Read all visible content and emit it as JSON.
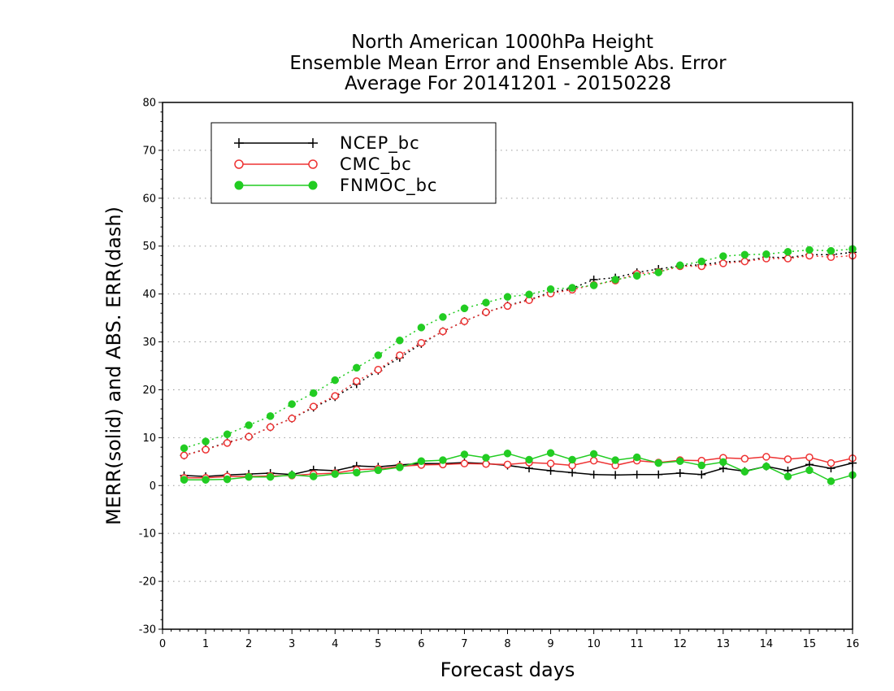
{
  "chart_data": {
    "type": "line",
    "title_lines": [
      "North American 1000hPa Height",
      "Ensemble Mean Error and Ensemble Abs. Error",
      "Average For 20141201 - 20150228"
    ],
    "xlabel": "Forecast days",
    "ylabel": "MERR(solid) and ABS. ERR(dash)",
    "xlim": [
      0,
      16
    ],
    "ylim": [
      -30,
      80
    ],
    "xticks": [
      "0",
      "1",
      "2",
      "3",
      "4",
      "5",
      "6",
      "7",
      "8",
      "9",
      "10",
      "11",
      "12",
      "13",
      "14",
      "15",
      "16"
    ],
    "yticks": [
      "-30",
      "-20",
      "-10",
      "0",
      "10",
      "20",
      "30",
      "40",
      "50",
      "60",
      "70",
      "80"
    ],
    "grid": "dotted horizontal",
    "legend_position": "top-left",
    "x": [
      0.5,
      1,
      1.5,
      2,
      2.5,
      3,
      3.5,
      4,
      4.5,
      5,
      5.5,
      6,
      6.5,
      7,
      7.5,
      8,
      8.5,
      9,
      9.5,
      10,
      10.5,
      11,
      11.5,
      12,
      12.5,
      13,
      13.5,
      14,
      14.5,
      15,
      15.5,
      16
    ],
    "series": [
      {
        "name": "NCEP_bc",
        "color": "#000000",
        "marker": "plus",
        "merr": [
          2.1,
          1.9,
          2.2,
          2.4,
          2.6,
          2.3,
          3.3,
          3.1,
          4.1,
          3.9,
          4.3,
          4.6,
          4.6,
          4.8,
          4.6,
          4.2,
          3.6,
          3.1,
          2.7,
          2.3,
          2.2,
          2.3,
          2.3,
          2.6,
          2.3,
          3.6,
          3.0,
          4.0,
          3.1,
          4.4,
          3.6,
          4.7
        ],
        "abs_err": [
          6.3,
          7.6,
          9.0,
          10.2,
          12.2,
          14.0,
          16.3,
          18.5,
          21.2,
          24.0,
          26.7,
          29.6,
          32.2,
          34.3,
          36.2,
          37.6,
          38.8,
          40.3,
          41.2,
          43.0,
          43.4,
          44.5,
          45.2,
          45.9,
          46.1,
          46.7,
          46.9,
          47.7,
          47.6,
          48.2,
          48.2,
          48.7
        ]
      },
      {
        "name": "CMC_bc",
        "color": "#ee3333",
        "marker": "open-circle",
        "merr": [
          1.6,
          1.6,
          1.9,
          1.9,
          2.0,
          2.1,
          2.4,
          2.6,
          3.3,
          3.5,
          4.0,
          4.3,
          4.4,
          4.6,
          4.5,
          4.4,
          4.8,
          4.6,
          4.2,
          5.2,
          4.2,
          5.2,
          4.8,
          5.3,
          5.2,
          5.8,
          5.6,
          6.0,
          5.5,
          5.9,
          4.7,
          5.7
        ],
        "abs_err": [
          6.3,
          7.5,
          8.9,
          10.2,
          12.2,
          14.0,
          16.5,
          18.7,
          21.8,
          24.2,
          27.2,
          29.8,
          32.2,
          34.3,
          36.2,
          37.5,
          38.7,
          40.1,
          40.9,
          41.9,
          42.8,
          44.2,
          44.6,
          45.8,
          45.8,
          46.4,
          46.8,
          47.4,
          47.4,
          48.0,
          47.7,
          48.0
        ]
      },
      {
        "name": "FNMOC_bc",
        "color": "#22cc22",
        "marker": "filled-circle",
        "merr": [
          1.2,
          1.2,
          1.3,
          1.8,
          1.8,
          2.2,
          1.9,
          2.4,
          2.7,
          3.2,
          3.8,
          5.1,
          5.3,
          6.5,
          5.8,
          6.7,
          5.4,
          6.8,
          5.4,
          6.6,
          5.3,
          5.9,
          4.7,
          5.1,
          4.2,
          4.9,
          2.9,
          4.0,
          1.9,
          3.2,
          0.9,
          2.2
        ],
        "abs_err": [
          7.8,
          9.2,
          10.7,
          12.6,
          14.5,
          17.0,
          19.3,
          22.0,
          24.6,
          27.2,
          30.3,
          33.0,
          35.2,
          37.0,
          38.2,
          39.4,
          39.9,
          41.0,
          41.3,
          41.8,
          43.0,
          43.8,
          44.5,
          46.0,
          46.8,
          47.9,
          48.2,
          48.3,
          48.8,
          49.2,
          49.0,
          49.4
        ]
      }
    ]
  }
}
